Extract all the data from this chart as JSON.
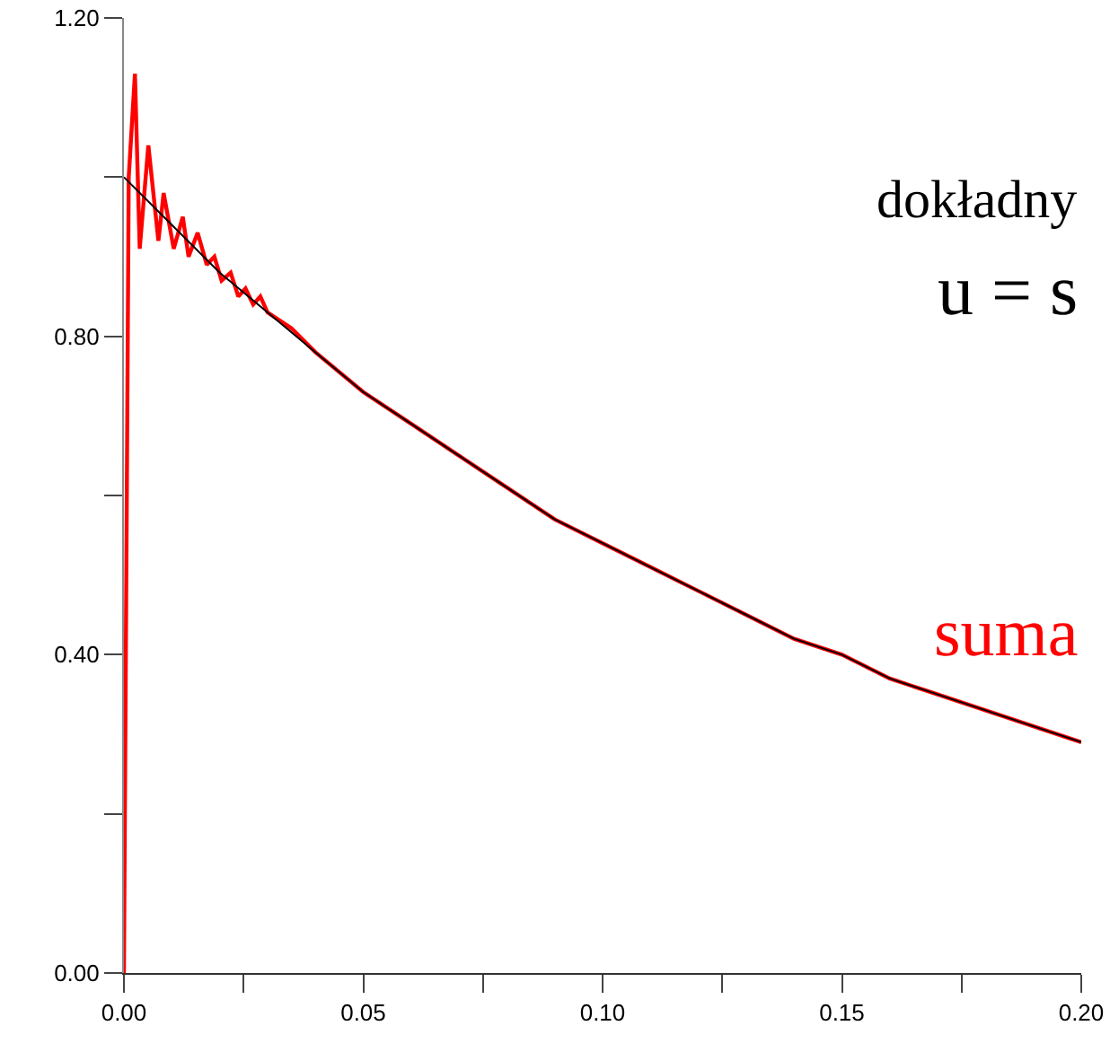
{
  "chart_data": {
    "type": "line",
    "annotations": [
      "u = s"
    ],
    "xlim": [
      0,
      0.2
    ],
    "xticks": [
      {
        "value": 0,
        "label": "0.00"
      },
      {
        "value": 0.025,
        "label": null
      },
      {
        "value": 0.05,
        "label": "0.05"
      },
      {
        "value": 0.075,
        "label": null
      },
      {
        "value": 0.1,
        "label": "0.10"
      },
      {
        "value": 0.125,
        "label": null
      },
      {
        "value": 0.15,
        "label": "0.15"
      },
      {
        "value": 0.175,
        "label": null
      },
      {
        "value": 0.2,
        "label": "0.20"
      }
    ],
    "ylim": [
      0,
      1.2
    ],
    "yticks": [
      {
        "value": 0,
        "label": "0.00"
      },
      {
        "value": 0.2,
        "label": null
      },
      {
        "value": 0.4,
        "label": "0.40"
      },
      {
        "value": 0.6,
        "label": null
      },
      {
        "value": 0.8,
        "label": "0.80"
      },
      {
        "value": 1.0,
        "label": null
      },
      {
        "value": 1.2,
        "label": "1.20"
      }
    ],
    "grid": false,
    "legend": false,
    "marker": "none",
    "line_style": "solid",
    "series": [
      {
        "name": "dokładny",
        "color": "#000000",
        "x": [
          0,
          0.01,
          0.02,
          0.03,
          0.04,
          0.05,
          0.06,
          0.07,
          0.08,
          0.09,
          0.1,
          0.11,
          0.12,
          0.13,
          0.14,
          0.15,
          0.16,
          0.17,
          0.18,
          0.19,
          0.2
        ],
        "values": [
          1.0,
          0.94,
          0.88,
          0.83,
          0.78,
          0.73,
          0.69,
          0.65,
          0.61,
          0.57,
          0.54,
          0.51,
          0.48,
          0.45,
          0.42,
          0.4,
          0.37,
          0.35,
          0.33,
          0.31,
          0.29
        ]
      },
      {
        "name": "suma",
        "color": "#ff0000",
        "x": [
          0,
          0.001,
          0.0023,
          0.0033,
          0.0051,
          0.0072,
          0.0083,
          0.0104,
          0.0123,
          0.0135,
          0.0154,
          0.0173,
          0.0189,
          0.0204,
          0.0223,
          0.0239,
          0.0254,
          0.027,
          0.0285,
          0.03,
          0.035,
          0.04,
          0.05,
          0.06,
          0.07,
          0.08,
          0.09,
          0.1,
          0.11,
          0.12,
          0.13,
          0.14,
          0.15,
          0.16,
          0.17,
          0.18,
          0.19,
          0.2
        ],
        "values": [
          0,
          1.0,
          1.13,
          0.91,
          1.04,
          0.92,
          0.98,
          0.91,
          0.95,
          0.9,
          0.93,
          0.89,
          0.9,
          0.87,
          0.88,
          0.85,
          0.86,
          0.84,
          0.85,
          0.83,
          0.81,
          0.78,
          0.73,
          0.69,
          0.65,
          0.61,
          0.57,
          0.54,
          0.51,
          0.48,
          0.45,
          0.42,
          0.4,
          0.37,
          0.35,
          0.33,
          0.31,
          0.29
        ]
      }
    ]
  }
}
